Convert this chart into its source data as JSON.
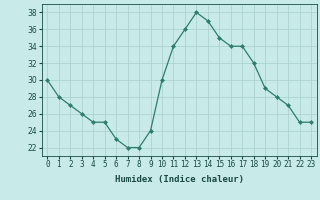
{
  "x": [
    0,
    1,
    2,
    3,
    4,
    5,
    6,
    7,
    8,
    9,
    10,
    11,
    12,
    13,
    14,
    15,
    16,
    17,
    18,
    19,
    20,
    21,
    22,
    23
  ],
  "y": [
    30,
    28,
    27,
    26,
    25,
    25,
    23,
    22,
    22,
    24,
    30,
    34,
    36,
    38,
    37,
    35,
    34,
    34,
    32,
    29,
    28,
    27,
    25,
    25
  ],
  "line_color": "#2e7d6e",
  "marker_color": "#2e7d6e",
  "bg_color": "#c8eae8",
  "grid_color": "#a8d0cc",
  "xlabel": "Humidex (Indice chaleur)",
  "ylim": [
    21,
    39
  ],
  "xlim": [
    -0.5,
    23.5
  ],
  "yticks": [
    22,
    24,
    26,
    28,
    30,
    32,
    34,
    36,
    38
  ],
  "xtick_labels": [
    "0",
    "1",
    "2",
    "3",
    "4",
    "5",
    "6",
    "7",
    "8",
    "9",
    "10",
    "11",
    "12",
    "13",
    "14",
    "15",
    "16",
    "17",
    "18",
    "19",
    "20",
    "21",
    "22",
    "23"
  ],
  "label_fontsize": 6.5,
  "tick_fontsize": 5.5,
  "text_color": "#1a4a44"
}
